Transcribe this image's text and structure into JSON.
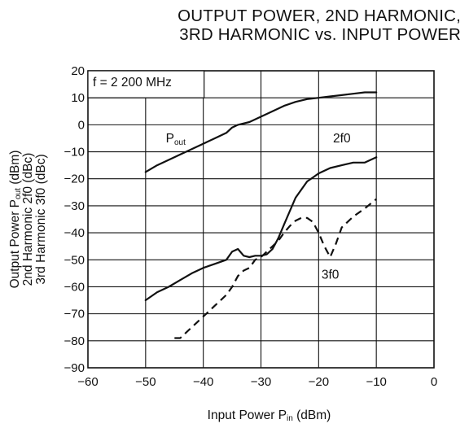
{
  "title": {
    "line1": "OUTPUT POWER, 2ND HARMONIC,",
    "line2": "3RD HARMONIC vs. INPUT POWER"
  },
  "chart_data": {
    "type": "line",
    "xlabel": {
      "main": "Input Power  P",
      "sub": "in",
      "unit": " (dBm)"
    },
    "ylabel": {
      "line1": {
        "main": "Output Power  P",
        "sub": "out",
        "unit": " (dBm)"
      },
      "line2": "2nd Harmonic  2f0 (dBc)",
      "line3": "3rd Harmonic  3f0 (dBc)"
    },
    "xlim": [
      -60,
      0
    ],
    "ylim": [
      -90,
      20
    ],
    "xticks": [
      -60,
      -50,
      -40,
      -30,
      -20,
      -10,
      0
    ],
    "yticks": [
      -90,
      -80,
      -70,
      -60,
      -50,
      -40,
      -30,
      -20,
      -10,
      0,
      10,
      20
    ],
    "xtick_labels": [
      "−60",
      "−50",
      "−40",
      "−30",
      "−20",
      "−10",
      "0"
    ],
    "ytick_labels": [
      "−90",
      "−80",
      "−70",
      "−60",
      "−50",
      "−40",
      "−30",
      "−20",
      "−10",
      "0",
      "10",
      "20"
    ],
    "grid": true,
    "condition_label": "f = 2 200 MHz",
    "series": [
      {
        "name": "Pout",
        "label": {
          "main": "P",
          "sub": "out"
        },
        "style": "solid",
        "x": [
          -50,
          -48,
          -46,
          -44,
          -42,
          -40,
          -38,
          -36,
          -35,
          -34,
          -32,
          -30,
          -28,
          -26,
          -24,
          -22,
          -20,
          -18,
          -16,
          -14,
          -12,
          -10
        ],
        "y": [
          -17.5,
          -15,
          -13,
          -11,
          -9,
          -7,
          -5,
          -3,
          -1,
          0,
          1,
          3,
          5,
          7,
          8.5,
          9.5,
          10,
          10.5,
          11,
          11.5,
          12,
          12
        ]
      },
      {
        "name": "2f0",
        "label": {
          "main": "2f0",
          "sub": ""
        },
        "style": "solid",
        "x": [
          -50,
          -48,
          -46,
          -44,
          -42,
          -40,
          -38,
          -36,
          -35,
          -34,
          -33,
          -32,
          -31,
          -30,
          -29,
          -28,
          -27,
          -26,
          -25,
          -24,
          -23,
          -22,
          -21,
          -20,
          -18,
          -16,
          -14,
          -12,
          -10
        ],
        "y": [
          -65,
          -62,
          -60,
          -57.5,
          -55,
          -53,
          -51.5,
          -50,
          -47,
          -46,
          -48.5,
          -49,
          -48.5,
          -48.5,
          -48,
          -46,
          -42,
          -37,
          -32,
          -27,
          -24,
          -21,
          -19.5,
          -18,
          -16,
          -15,
          -14,
          -14,
          -12
        ]
      },
      {
        "name": "3f0",
        "label": {
          "main": "3f0",
          "sub": ""
        },
        "style": "dashed",
        "x": [
          -45,
          -44,
          -42,
          -40,
          -38,
          -36,
          -35,
          -34,
          -33,
          -32,
          -31,
          -30,
          -29,
          -28,
          -27,
          -26,
          -25,
          -24,
          -23,
          -22,
          -21,
          -20,
          -19,
          -18,
          -17,
          -16,
          -14,
          -12,
          -10
        ],
        "y": [
          -79,
          -79,
          -75,
          -71,
          -67,
          -63,
          -60,
          -56,
          -54,
          -53,
          -50,
          -49,
          -47,
          -45,
          -43,
          -40,
          -37.5,
          -35.5,
          -34.5,
          -34.5,
          -36,
          -40,
          -45,
          -49,
          -44,
          -38,
          -34,
          -31,
          -27.5
        ]
      }
    ]
  }
}
